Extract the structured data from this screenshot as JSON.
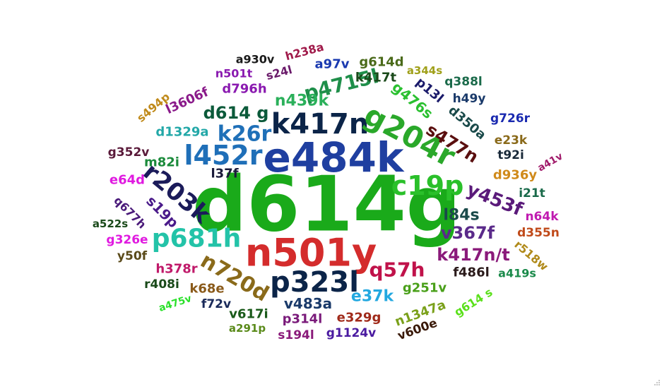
{
  "words": [
    {
      "text": "d614g",
      "color": "#1aaa1a"
    },
    {
      "text": "n501y",
      "color": "#d42c2c"
    },
    {
      "text": "e484k",
      "color": "#1f3fa0"
    },
    {
      "text": "k417n",
      "color": "#0b2448"
    },
    {
      "text": "g204r",
      "color": "#2aa82a"
    },
    {
      "text": "p323l",
      "color": "#0b2448"
    },
    {
      "text": "c19p",
      "color": "#2ac02a"
    },
    {
      "text": "p681h",
      "color": "#23c3a8"
    },
    {
      "text": "l452r",
      "color": "#1f6fb8"
    },
    {
      "text": "r203k",
      "color": "#1b1b5a"
    },
    {
      "text": "n720d",
      "color": "#8a6a1a"
    },
    {
      "text": "k26r",
      "color": "#1f70b8"
    },
    {
      "text": "p4715l",
      "color": "#1f8f4a"
    },
    {
      "text": "q57h",
      "color": "#c0124a"
    },
    {
      "text": "y453f",
      "color": "#5a1a7a"
    },
    {
      "text": "v367f",
      "color": "#5a2a8a"
    },
    {
      "text": "k417n/t",
      "color": "#8a1a7a"
    },
    {
      "text": "s477n",
      "color": "#5a0f0f"
    },
    {
      "text": "d614 g",
      "color": "#0b5a3a"
    },
    {
      "text": "l84s",
      "color": "#1a4a4a"
    },
    {
      "text": "n439k",
      "color": "#2ab05a"
    },
    {
      "text": "e37k",
      "color": "#23a8e0"
    },
    {
      "text": "g476s",
      "color": "#2ac030"
    },
    {
      "text": "v483a",
      "color": "#1a3a6a"
    },
    {
      "text": "s19p",
      "color": "#4a1a8a"
    },
    {
      "text": "m82i",
      "color": "#1a8a3a"
    },
    {
      "text": "d1329a",
      "color": "#23a8a8"
    },
    {
      "text": "l37f",
      "color": "#1a1a3a"
    },
    {
      "text": "g251v",
      "color": "#4aa01a"
    },
    {
      "text": "f486l",
      "color": "#2a1a1a"
    },
    {
      "text": "q677h",
      "color": "#4a1a7a"
    },
    {
      "text": "h378r",
      "color": "#c01a6a"
    },
    {
      "text": "k68e",
      "color": "#8a5a1a"
    },
    {
      "text": "p314l",
      "color": "#7a1a7a"
    },
    {
      "text": "e329g",
      "color": "#a02a1a"
    },
    {
      "text": "n1347a",
      "color": "#7aa01a"
    },
    {
      "text": "g614 s",
      "color": "#5ae01a"
    },
    {
      "text": "v617i",
      "color": "#1a5a1a"
    },
    {
      "text": "d350a",
      "color": "#1a4a4a"
    },
    {
      "text": "l3606f",
      "color": "#8a1a8a"
    },
    {
      "text": "d796h",
      "color": "#8a1ab0"
    },
    {
      "text": "p13l",
      "color": "#1a1a6a"
    },
    {
      "text": "k417t",
      "color": "#1a4a1a"
    },
    {
      "text": "g614d",
      "color": "#4a6a1a"
    },
    {
      "text": "a97v",
      "color": "#1a3ab0"
    },
    {
      "text": "h238a",
      "color": "#a01a4a"
    },
    {
      "text": "a930v",
      "color": "#1a1a1a"
    },
    {
      "text": "n501t",
      "color": "#8a1ab0"
    },
    {
      "text": "s24l",
      "color": "#6a1a6a"
    },
    {
      "text": "a344s",
      "color": "#a0a01a"
    },
    {
      "text": "q388l",
      "color": "#1a6a4a"
    },
    {
      "text": "h49y",
      "color": "#1a3a6a"
    },
    {
      "text": "s494p",
      "color": "#c08a1a"
    },
    {
      "text": "g726r",
      "color": "#1a2ab0"
    },
    {
      "text": "e23k",
      "color": "#8a6a1a"
    },
    {
      "text": "t92i",
      "color": "#1a2a3a"
    },
    {
      "text": "a41v",
      "color": "#a01a6a"
    },
    {
      "text": "d936y",
      "color": "#d08a1a"
    },
    {
      "text": "i21t",
      "color": "#1a6a4a"
    },
    {
      "text": "n64k",
      "color": "#c01ab0"
    },
    {
      "text": "d355n",
      "color": "#c04a1a"
    },
    {
      "text": "r518w",
      "color": "#b08a1a"
    },
    {
      "text": "a419s",
      "color": "#1a8a4a"
    },
    {
      "text": "g352v",
      "color": "#5a1a3a"
    },
    {
      "text": "e64d",
      "color": "#e01ae0"
    },
    {
      "text": "a522s",
      "color": "#1a4a1a"
    },
    {
      "text": "g326e",
      "color": "#e01ae0"
    },
    {
      "text": "y50f",
      "color": "#5a4a1a"
    },
    {
      "text": "r408i",
      "color": "#1a4a1a"
    },
    {
      "text": "a475v",
      "color": "#2ae02a"
    },
    {
      "text": "f72v",
      "color": "#1a2a5a"
    },
    {
      "text": "a291p",
      "color": "#5a8a1a"
    },
    {
      "text": "s194l",
      "color": "#8a1a7a"
    },
    {
      "text": "g1124v",
      "color": "#4a1aa0"
    },
    {
      "text": "v600e",
      "color": "#3a1a0a"
    }
  ]
}
